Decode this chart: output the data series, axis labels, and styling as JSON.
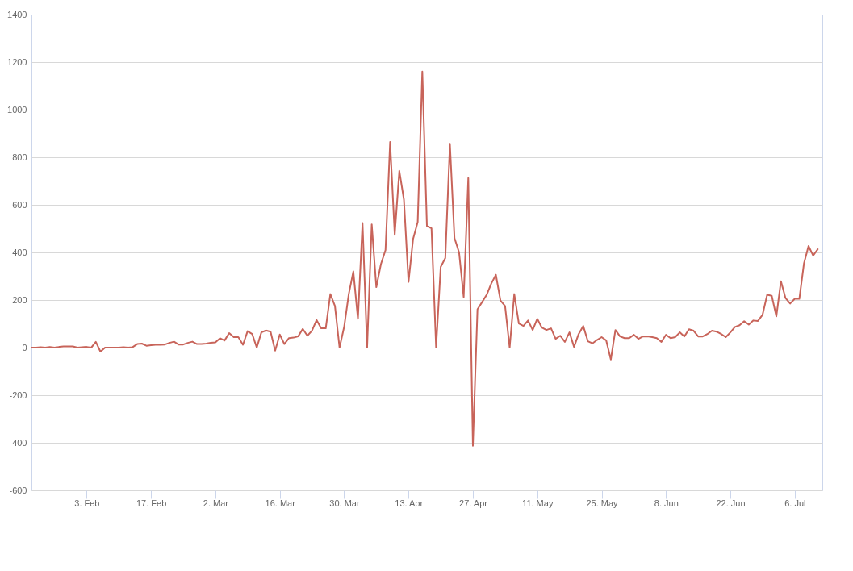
{
  "chart_data": {
    "type": "line",
    "x": [
      "--01-22",
      "--01-23",
      "--01-24",
      "--01-25",
      "--01-26",
      "--01-27",
      "--01-28",
      "--01-29",
      "--01-30",
      "--01-31",
      "--02-01",
      "--02-02",
      "--02-03",
      "--02-04",
      "--02-05",
      "--02-06",
      "--02-07",
      "--02-08",
      "--02-09",
      "--02-10",
      "--02-11",
      "--02-12",
      "--02-13",
      "--02-14",
      "--02-15",
      "--02-16",
      "--02-17",
      "--02-18",
      "--02-19",
      "--02-20",
      "--02-21",
      "--02-22",
      "--02-23",
      "--02-24",
      "--02-25",
      "--02-26",
      "--02-27",
      "--02-28",
      "--02-29",
      "--03-01",
      "--03-02",
      "--03-03",
      "--03-04",
      "--03-05",
      "--03-06",
      "--03-07",
      "--03-08",
      "--03-09",
      "--03-10",
      "--03-11",
      "--03-12",
      "--03-13",
      "--03-14",
      "--03-15",
      "--03-16",
      "--03-17",
      "--03-18",
      "--03-19",
      "--03-20",
      "--03-21",
      "--03-22",
      "--03-23",
      "--03-24",
      "--03-25",
      "--03-26",
      "--03-27",
      "--03-28",
      "--03-29",
      "--03-30",
      "--03-31",
      "--04-01",
      "--04-02",
      "--04-03",
      "--04-04",
      "--04-05",
      "--04-06",
      "--04-07",
      "--04-08",
      "--04-09",
      "--04-10",
      "--04-11",
      "--04-12",
      "--04-13",
      "--04-14",
      "--04-15",
      "--04-16",
      "--04-17",
      "--04-18",
      "--04-19",
      "--04-20",
      "--04-21",
      "--04-22",
      "--04-23",
      "--04-24",
      "--04-25",
      "--04-26",
      "--04-27",
      "--04-28",
      "--04-29",
      "--04-30",
      "--05-01",
      "--05-02",
      "--05-03",
      "--05-04",
      "--05-05",
      "--05-06",
      "--05-07",
      "--05-08",
      "--05-09",
      "--05-10",
      "--05-11",
      "--05-12",
      "--05-13",
      "--05-14",
      "--05-15",
      "--05-16",
      "--05-17",
      "--05-18",
      "--05-19",
      "--05-20",
      "--05-21",
      "--05-22",
      "--05-23",
      "--05-24",
      "--05-25",
      "--05-26",
      "--05-27",
      "--05-28",
      "--05-29",
      "--05-30",
      "--05-31",
      "--06-01",
      "--06-02",
      "--06-03",
      "--06-04",
      "--06-05",
      "--06-06",
      "--06-07",
      "--06-08",
      "--06-09",
      "--06-10",
      "--06-11",
      "--06-12",
      "--06-13",
      "--06-14",
      "--06-15",
      "--06-16",
      "--06-17",
      "--06-18",
      "--06-19",
      "--06-20",
      "--06-21",
      "--06-22",
      "--06-23",
      "--06-24",
      "--06-25",
      "--06-26",
      "--06-27",
      "--06-28",
      "--06-29",
      "--06-30",
      "--07-01",
      "--07-02",
      "--07-03",
      "--07-04",
      "--07-05",
      "--07-06",
      "--07-07",
      "--07-08",
      "--07-09",
      "--07-10",
      "--07-11"
    ],
    "series": [
      {
        "color": "#c8645a",
        "values": [
          0,
          0,
          2,
          0,
          3,
          0,
          3,
          5,
          5,
          5,
          0,
          2,
          3,
          0,
          24,
          -17,
          0,
          0,
          0,
          0,
          2,
          0,
          2,
          15,
          17,
          8,
          10,
          12,
          12,
          13,
          20,
          25,
          13,
          13,
          20,
          25,
          15,
          15,
          17,
          20,
          22,
          39,
          30,
          61,
          44,
          44,
          12,
          69,
          57,
          0,
          64,
          72,
          67,
          -13,
          55,
          15,
          40,
          42,
          47,
          79,
          50,
          71,
          116,
          81,
          81,
          225,
          175,
          0,
          87,
          224,
          320,
          121,
          524,
          0,
          518,
          254,
          351,
          410,
          864,
          474,
          743,
          622,
          276,
          457,
          528,
          1160,
          511,
          501,
          0,
          339,
          376,
          857,
          460,
          400,
          212,
          713,
          -413,
          161,
          191,
          222,
          269,
          306,
          198,
          175,
          0,
          225,
          101,
          91,
          114,
          74,
          121,
          84,
          74,
          81,
          37,
          50,
          24,
          64,
          3,
          57,
          91,
          27,
          18,
          32,
          44,
          30,
          -50,
          74,
          47,
          40,
          40,
          54,
          37,
          47,
          47,
          44,
          40,
          24,
          54,
          40,
          44,
          64,
          47,
          77,
          71,
          47,
          47,
          57,
          71,
          67,
          57,
          44,
          64,
          87,
          94,
          111,
          97,
          114,
          112,
          138,
          222,
          218,
          131,
          279,
          208,
          185,
          205,
          205,
          353,
          427,
          387,
          413
        ]
      }
    ],
    "xlim": [
      "--01-22",
      "--07-12"
    ],
    "xticks": [
      {
        "value": "--02-03",
        "label": "3. Feb"
      },
      {
        "value": "--02-17",
        "label": "17. Feb"
      },
      {
        "value": "--03-02",
        "label": "2. Mar"
      },
      {
        "value": "--03-16",
        "label": "16. Mar"
      },
      {
        "value": "--03-30",
        "label": "30. Mar"
      },
      {
        "value": "--04-13",
        "label": "13. Apr"
      },
      {
        "value": "--04-27",
        "label": "27. Apr"
      },
      {
        "value": "--05-11",
        "label": "11. May"
      },
      {
        "value": "--05-25",
        "label": "25. May"
      },
      {
        "value": "--06-08",
        "label": "8. Jun"
      },
      {
        "value": "--06-22",
        "label": "22. Jun"
      },
      {
        "value": "--07-06",
        "label": "6. Jul"
      }
    ],
    "ylim": [
      -600,
      1400
    ],
    "yticks": [
      -600,
      -400,
      -200,
      0,
      200,
      400,
      600,
      800,
      1000,
      1200,
      1400
    ],
    "grid": "y",
    "marker": "none",
    "line_style": "solid"
  }
}
